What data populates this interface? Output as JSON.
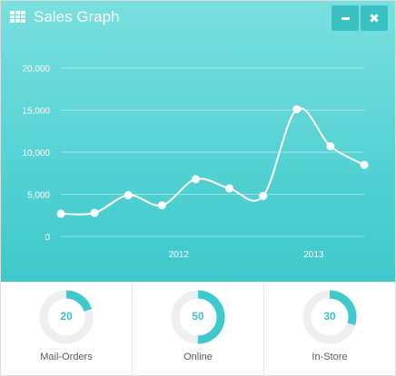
{
  "header": {
    "title": "Sales Graph",
    "icon": "grid-icon",
    "minimize_label": "−",
    "close_label": "✖"
  },
  "chart_data": {
    "type": "line",
    "x_labels": [
      "2012",
      "2013"
    ],
    "y_ticks": [
      "0",
      "5,000",
      "10,000",
      "15,000",
      "20,000"
    ],
    "ylim": [
      0,
      20000
    ],
    "values": [
      2700,
      2800,
      4900,
      3700,
      6800,
      5700,
      4800,
      15100,
      10700,
      8500
    ],
    "x_label_positions": [
      3.5,
      7.5
    ],
    "grid": true,
    "line_color": "#ffffff"
  },
  "stats": [
    {
      "label": "Mail-Orders",
      "value": "20",
      "percent": 20
    },
    {
      "label": "Online",
      "value": "50",
      "percent": 50
    },
    {
      "label": "In-Store",
      "value": "30",
      "percent": 30
    }
  ],
  "colors": {
    "accent": "#3fc9cc",
    "donut_track": "#eeeeee",
    "donut_fill": "#3fc9cc"
  }
}
